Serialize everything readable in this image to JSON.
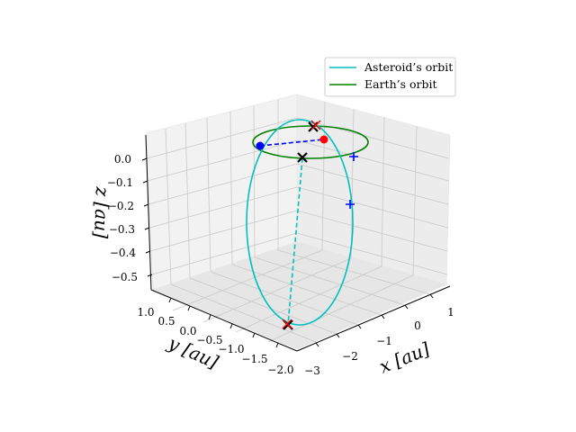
{
  "chart_data": {
    "type": "line3d",
    "title": "",
    "xlabel": "$x$ [au]",
    "ylabel": "$y$ [au]",
    "zlabel": "$z$ [au]",
    "xlabel_text": "x [au]",
    "ylabel_text": "y [au]",
    "zlabel_text": "z [au]",
    "xlim": [
      -3,
      1
    ],
    "ylim": [
      -2.0,
      1.0
    ],
    "zlim": [
      -0.55,
      0.05
    ],
    "x_ticks": [
      "−3",
      "−2",
      "−1",
      "0",
      "1"
    ],
    "y_ticks": [
      "−2.0",
      "−1.5",
      "−1.0",
      "−0.5",
      "0.0",
      "0.5",
      "1.0"
    ],
    "z_ticks": [
      "−0.5",
      "−0.4",
      "−0.3",
      "−0.2",
      "−0.1",
      "0.0"
    ],
    "grid": true,
    "legend_position": "top-right",
    "legend": [
      {
        "label": "Asteroid’s orbit",
        "color": "#00bfbf"
      },
      {
        "label": "Earth’s orbit",
        "color": "#008000"
      }
    ],
    "series": [
      {
        "name": "Asteroid’s orbit",
        "kind": "ellipse-orbit",
        "color": "#00bfbf",
        "a": 1.3,
        "e": 0.5,
        "inclination_deg": 22,
        "description": "tilted elliptical orbit"
      },
      {
        "name": "Earth’s orbit",
        "kind": "circular-orbit",
        "color": "#008000",
        "radius": 1.0
      }
    ],
    "markers": {
      "black_x_points": [
        {
          "x": -0.1,
          "y": 1.0,
          "z": 0.0
        },
        {
          "x": -0.35,
          "y": -0.95,
          "z": 0.0
        },
        {
          "x": -2.3,
          "y": -1.7,
          "z": -0.5
        }
      ],
      "red_x_points": [
        {
          "x": -0.1,
          "y": 1.0,
          "z": 0.0
        },
        {
          "x": -2.3,
          "y": -1.7,
          "z": -0.5
        }
      ],
      "red_dot": {
        "x": 0.55,
        "y": 0.85,
        "z": 0.0
      },
      "blue_dot": {
        "x": -0.95,
        "y": -0.25,
        "z": 0.0
      },
      "blue_plus_points": [
        {
          "x": 0.35,
          "y": -0.1,
          "z": 0.0
        },
        {
          "x": 0.05,
          "y": -0.65,
          "z": -0.15
        }
      ]
    }
  }
}
